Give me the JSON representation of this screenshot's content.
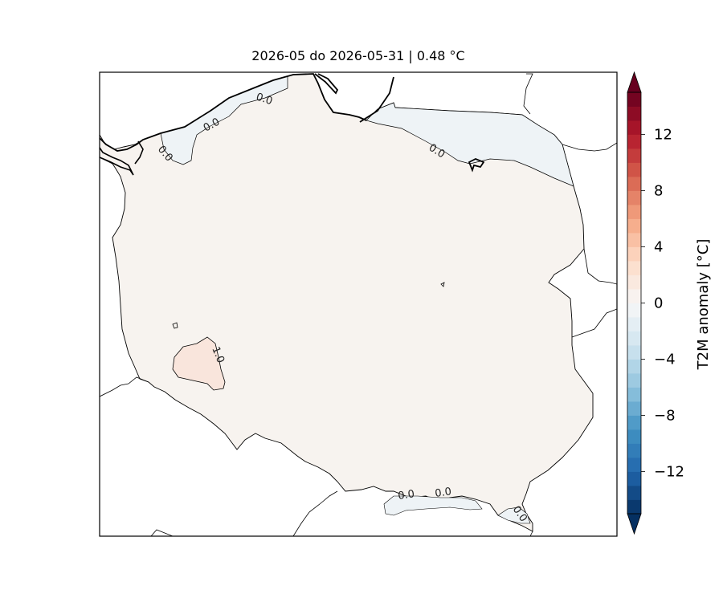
{
  "title": "2026-05 do 2026-05-31 | 0.48 °C",
  "map": {
    "region": "Poland",
    "contour_labels": [
      "0.0",
      "0.0",
      "0.0",
      "0.0",
      "1.0",
      "0.0",
      "0.0",
      "0.0"
    ]
  },
  "colorbar": {
    "label": "T2M anomaly [°C]",
    "min": -15,
    "max": 15,
    "step": 1,
    "ticks": [
      -12,
      -8,
      -4,
      0,
      4,
      8,
      12
    ],
    "tick_labels": [
      "−12",
      "−8",
      "−4",
      "0",
      "4",
      "8",
      "12"
    ],
    "colormap": "RdBu_r",
    "extend": "both"
  },
  "colors": {
    "land_fill": "#f7f3ef",
    "cool_patch": "#eef3f6",
    "warm_patch": "#f9e5dc",
    "border": "#000000"
  }
}
